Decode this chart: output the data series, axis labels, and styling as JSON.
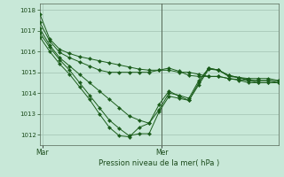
{
  "xlabel": "Pression niveau de la mer( hPa )",
  "bg_color": "#c8e8d8",
  "grid_color": "#a8c8b8",
  "line_color": "#1a5c1a",
  "vline_color": "#556655",
  "ylim": [
    1011.5,
    1018.3
  ],
  "yticks": [
    1012,
    1013,
    1014,
    1015,
    1016,
    1017,
    1018
  ],
  "xlim": [
    0,
    48
  ],
  "mar_x": 0.5,
  "mer_x": 24.5,
  "mar_label": "Mar",
  "mer_label": "Mer",
  "series": [
    {
      "x": [
        0,
        2,
        4,
        6,
        8,
        10,
        12,
        14,
        16,
        18,
        20,
        22,
        24,
        26,
        28,
        30,
        32,
        34,
        36,
        38,
        40,
        42,
        44,
        46,
        48
      ],
      "y": [
        1017.8,
        1016.6,
        1016.1,
        1015.9,
        1015.75,
        1015.65,
        1015.55,
        1015.45,
        1015.35,
        1015.25,
        1015.15,
        1015.1,
        1015.1,
        1015.1,
        1015.0,
        1015.0,
        1014.9,
        1014.8,
        1014.8,
        1014.7,
        1014.65,
        1014.6,
        1014.6,
        1014.6,
        1014.6
      ]
    },
    {
      "x": [
        0,
        2,
        4,
        6,
        8,
        10,
        12,
        14,
        16,
        18,
        20,
        22,
        24,
        26,
        28,
        30,
        32,
        34,
        36,
        38,
        40,
        42,
        44,
        46,
        48
      ],
      "y": [
        1017.4,
        1016.5,
        1015.95,
        1015.7,
        1015.5,
        1015.3,
        1015.1,
        1015.0,
        1015.0,
        1015.0,
        1015.0,
        1015.0,
        1015.1,
        1015.2,
        1015.05,
        1014.85,
        1014.8,
        1014.8,
        1014.8,
        1014.7,
        1014.62,
        1014.5,
        1014.5,
        1014.5,
        1014.5
      ]
    },
    {
      "x": [
        0,
        2,
        4,
        6,
        8,
        10,
        12,
        14,
        16,
        18,
        20,
        22,
        24,
        26,
        28,
        30,
        32,
        34,
        36,
        38,
        40,
        42,
        44,
        46,
        48
      ],
      "y": [
        1017.1,
        1016.3,
        1015.7,
        1015.3,
        1014.9,
        1014.5,
        1014.1,
        1013.7,
        1013.3,
        1012.9,
        1012.7,
        1012.55,
        1013.2,
        1014.0,
        1013.9,
        1013.75,
        1014.6,
        1015.2,
        1015.1,
        1014.85,
        1014.75,
        1014.7,
        1014.7,
        1014.7,
        1014.6
      ]
    },
    {
      "x": [
        0,
        2,
        4,
        6,
        8,
        10,
        12,
        14,
        16,
        18,
        20,
        22,
        24,
        26,
        28,
        30,
        32,
        34,
        36,
        38,
        40,
        42,
        44,
        46,
        48
      ],
      "y": [
        1016.9,
        1016.2,
        1015.6,
        1015.1,
        1014.5,
        1013.9,
        1013.3,
        1012.7,
        1012.3,
        1011.95,
        1012.05,
        1012.05,
        1013.1,
        1013.85,
        1013.75,
        1013.65,
        1014.5,
        1015.2,
        1015.1,
        1014.85,
        1014.75,
        1014.65,
        1014.6,
        1014.6,
        1014.5
      ]
    },
    {
      "x": [
        0,
        2,
        4,
        6,
        8,
        10,
        12,
        14,
        16,
        18,
        20,
        22,
        24,
        26,
        28,
        30,
        32,
        34,
        36,
        38,
        40,
        42,
        44,
        46,
        48
      ],
      "y": [
        1016.7,
        1016.0,
        1015.4,
        1014.9,
        1014.3,
        1013.7,
        1013.0,
        1012.35,
        1011.95,
        1011.9,
        1012.35,
        1012.55,
        1013.45,
        1014.1,
        1013.85,
        1013.65,
        1014.4,
        1015.15,
        1015.1,
        1014.8,
        1014.75,
        1014.6,
        1014.5,
        1014.5,
        1014.5
      ]
    }
  ]
}
